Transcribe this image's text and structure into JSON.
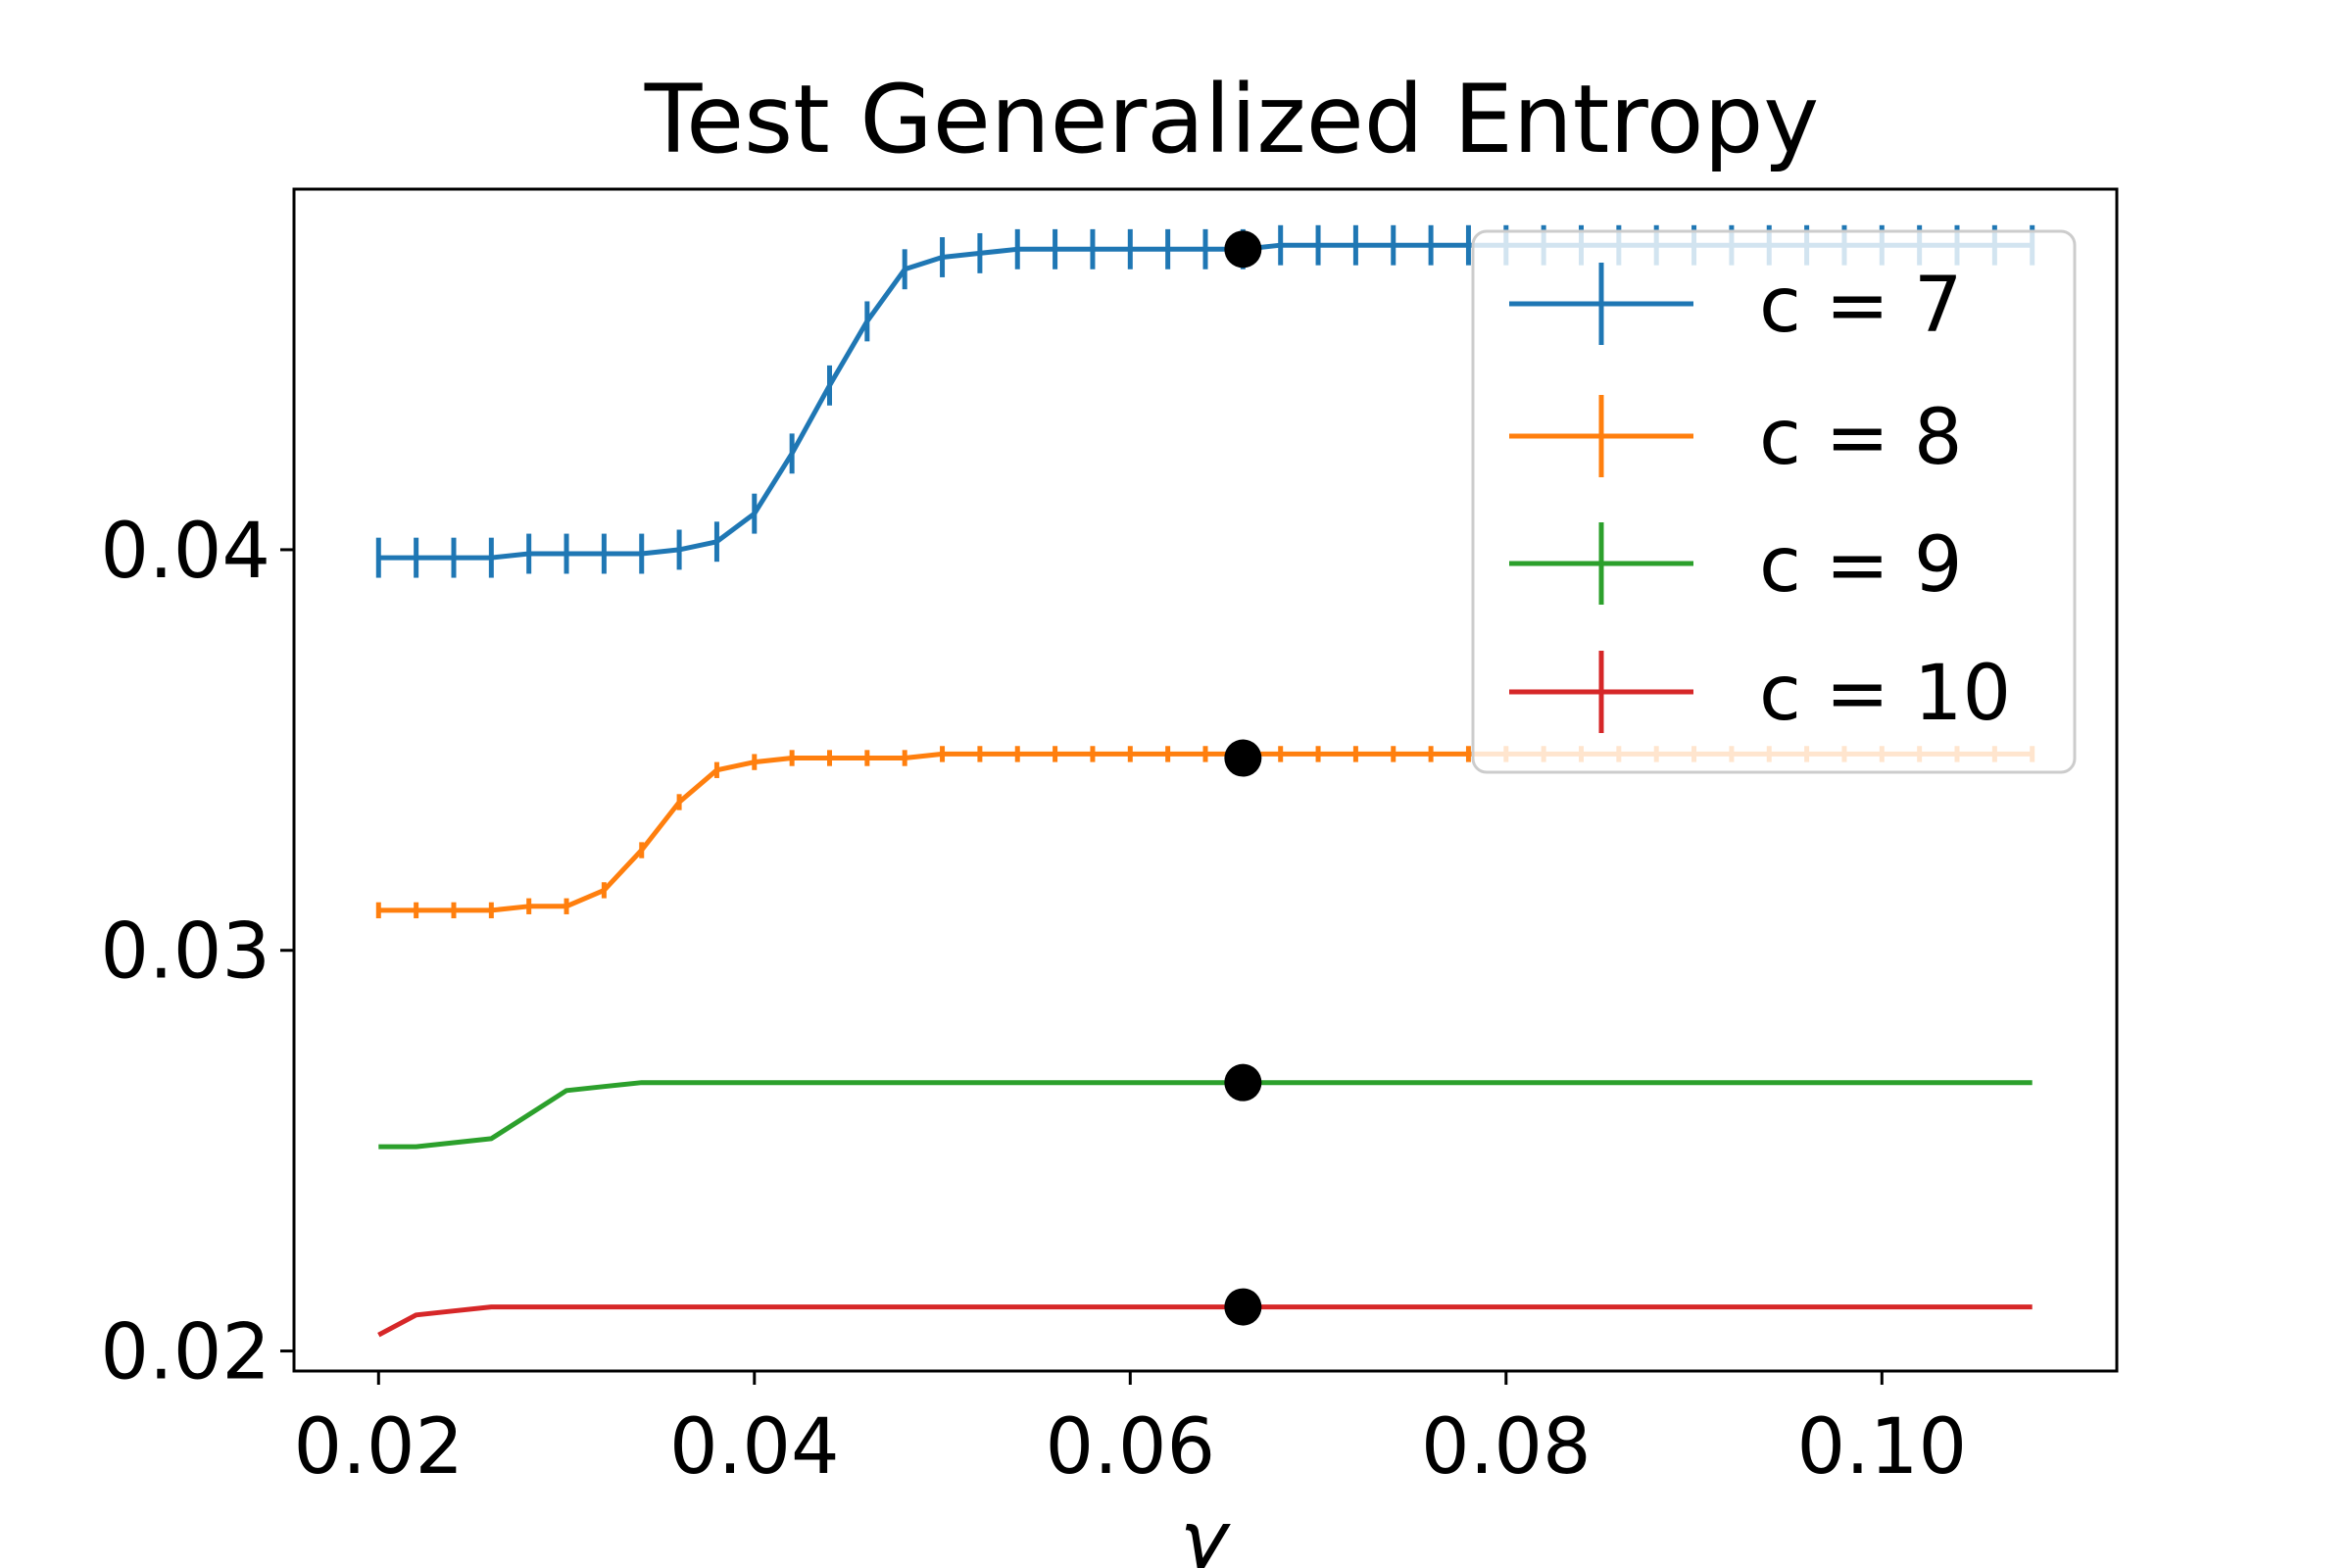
{
  "chart_data": {
    "type": "line",
    "title": "Test Generalized Entropy",
    "xlabel": "γ",
    "ylabel": "",
    "xlim": [
      0.0155,
      0.1125
    ],
    "ylim": [
      0.0195,
      0.049
    ],
    "grid": false,
    "legend_position": "top-right",
    "xticks": [
      0.02,
      0.04,
      0.06,
      0.08,
      0.1
    ],
    "xtick_labels": [
      "0.02",
      "0.04",
      "0.06",
      "0.08",
      "0.10"
    ],
    "yticks": [
      0.02,
      0.03,
      0.04
    ],
    "ytick_labels": [
      "0.02",
      "0.03",
      "0.04"
    ],
    "x": [
      0.02,
      0.022,
      0.024,
      0.026,
      0.028,
      0.03,
      0.032,
      0.034,
      0.036,
      0.038,
      0.04,
      0.042,
      0.044,
      0.046,
      0.048,
      0.05,
      0.052,
      0.054,
      0.056,
      0.058,
      0.06,
      0.062,
      0.064,
      0.066,
      0.068,
      0.07,
      0.072,
      0.074,
      0.076,
      0.078,
      0.08,
      0.082,
      0.084,
      0.086,
      0.088,
      0.09,
      0.092,
      0.094,
      0.096,
      0.098,
      0.1,
      0.102,
      0.104,
      0.106,
      0.108
    ],
    "series": [
      {
        "name": "c = 7",
        "color": "#1f77b4",
        "values": [
          0.0398,
          0.0398,
          0.0398,
          0.0398,
          0.0399,
          0.0399,
          0.0399,
          0.0399,
          0.04,
          0.0402,
          0.0409,
          0.0424,
          0.0441,
          0.0457,
          0.047,
          0.0473,
          0.0474,
          0.0475,
          0.0475,
          0.0475,
          0.0475,
          0.0475,
          0.0475,
          0.0475,
          0.0476,
          0.0476,
          0.0476,
          0.0476,
          0.0476,
          0.0476,
          0.0476,
          0.0476,
          0.0476,
          0.0476,
          0.0476,
          0.0476,
          0.0476,
          0.0476,
          0.0476,
          0.0476,
          0.0476,
          0.0476,
          0.0476,
          0.0476,
          0.0476
        ],
        "error_bar_half_height": 0.0005
      },
      {
        "name": "c = 8",
        "color": "#ff7f0e",
        "values": [
          0.031,
          0.031,
          0.031,
          0.031,
          0.0311,
          0.0311,
          0.0315,
          0.0325,
          0.0337,
          0.0345,
          0.0347,
          0.0348,
          0.0348,
          0.0348,
          0.0348,
          0.0349,
          0.0349,
          0.0349,
          0.0349,
          0.0349,
          0.0349,
          0.0349,
          0.0349,
          0.0349,
          0.0349,
          0.0349,
          0.0349,
          0.0349,
          0.0349,
          0.0349,
          0.0349,
          0.0349,
          0.0349,
          0.0349,
          0.0349,
          0.0349,
          0.0349,
          0.0349,
          0.0349,
          0.0349,
          0.0349,
          0.0349,
          0.0349,
          0.0349,
          0.0349
        ],
        "error_bar_half_height": 0.0002
      },
      {
        "name": "c = 9",
        "color": "#2ca02c",
        "values": [
          0.0251,
          0.0251,
          0.0252,
          0.0253,
          0.0259,
          0.0265,
          0.0266,
          0.0267,
          0.0267,
          0.0267,
          0.0267,
          0.0267,
          0.0267,
          0.0267,
          0.0267,
          0.0267,
          0.0267,
          0.0267,
          0.0267,
          0.0267,
          0.0267,
          0.0267,
          0.0267,
          0.0267,
          0.0267,
          0.0267,
          0.0267,
          0.0267,
          0.0267,
          0.0267,
          0.0267,
          0.0267,
          0.0267,
          0.0267,
          0.0267,
          0.0267,
          0.0267,
          0.0267,
          0.0267,
          0.0267,
          0.0267,
          0.0267,
          0.0267,
          0.0267,
          0.0267
        ],
        "error_bar_half_height": 0.0
      },
      {
        "name": "c = 10",
        "color": "#d62728",
        "values": [
          0.0204,
          0.0209,
          0.021,
          0.0211,
          0.0211,
          0.0211,
          0.0211,
          0.0211,
          0.0211,
          0.0211,
          0.0211,
          0.0211,
          0.0211,
          0.0211,
          0.0211,
          0.0211,
          0.0211,
          0.0211,
          0.0211,
          0.0211,
          0.0211,
          0.0211,
          0.0211,
          0.0211,
          0.0211,
          0.0211,
          0.0211,
          0.0211,
          0.0211,
          0.0211,
          0.0211,
          0.0211,
          0.0211,
          0.0211,
          0.0211,
          0.0211,
          0.0211,
          0.0211,
          0.0211,
          0.0211,
          0.0211,
          0.0211,
          0.0211,
          0.0211,
          0.0211
        ],
        "error_bar_half_height": 0.0
      }
    ],
    "markers": {
      "color": "#000000",
      "points": [
        {
          "x": 0.066,
          "y": 0.0475
        },
        {
          "x": 0.066,
          "y": 0.0348
        },
        {
          "x": 0.066,
          "y": 0.0267
        },
        {
          "x": 0.066,
          "y": 0.0211
        }
      ]
    }
  }
}
